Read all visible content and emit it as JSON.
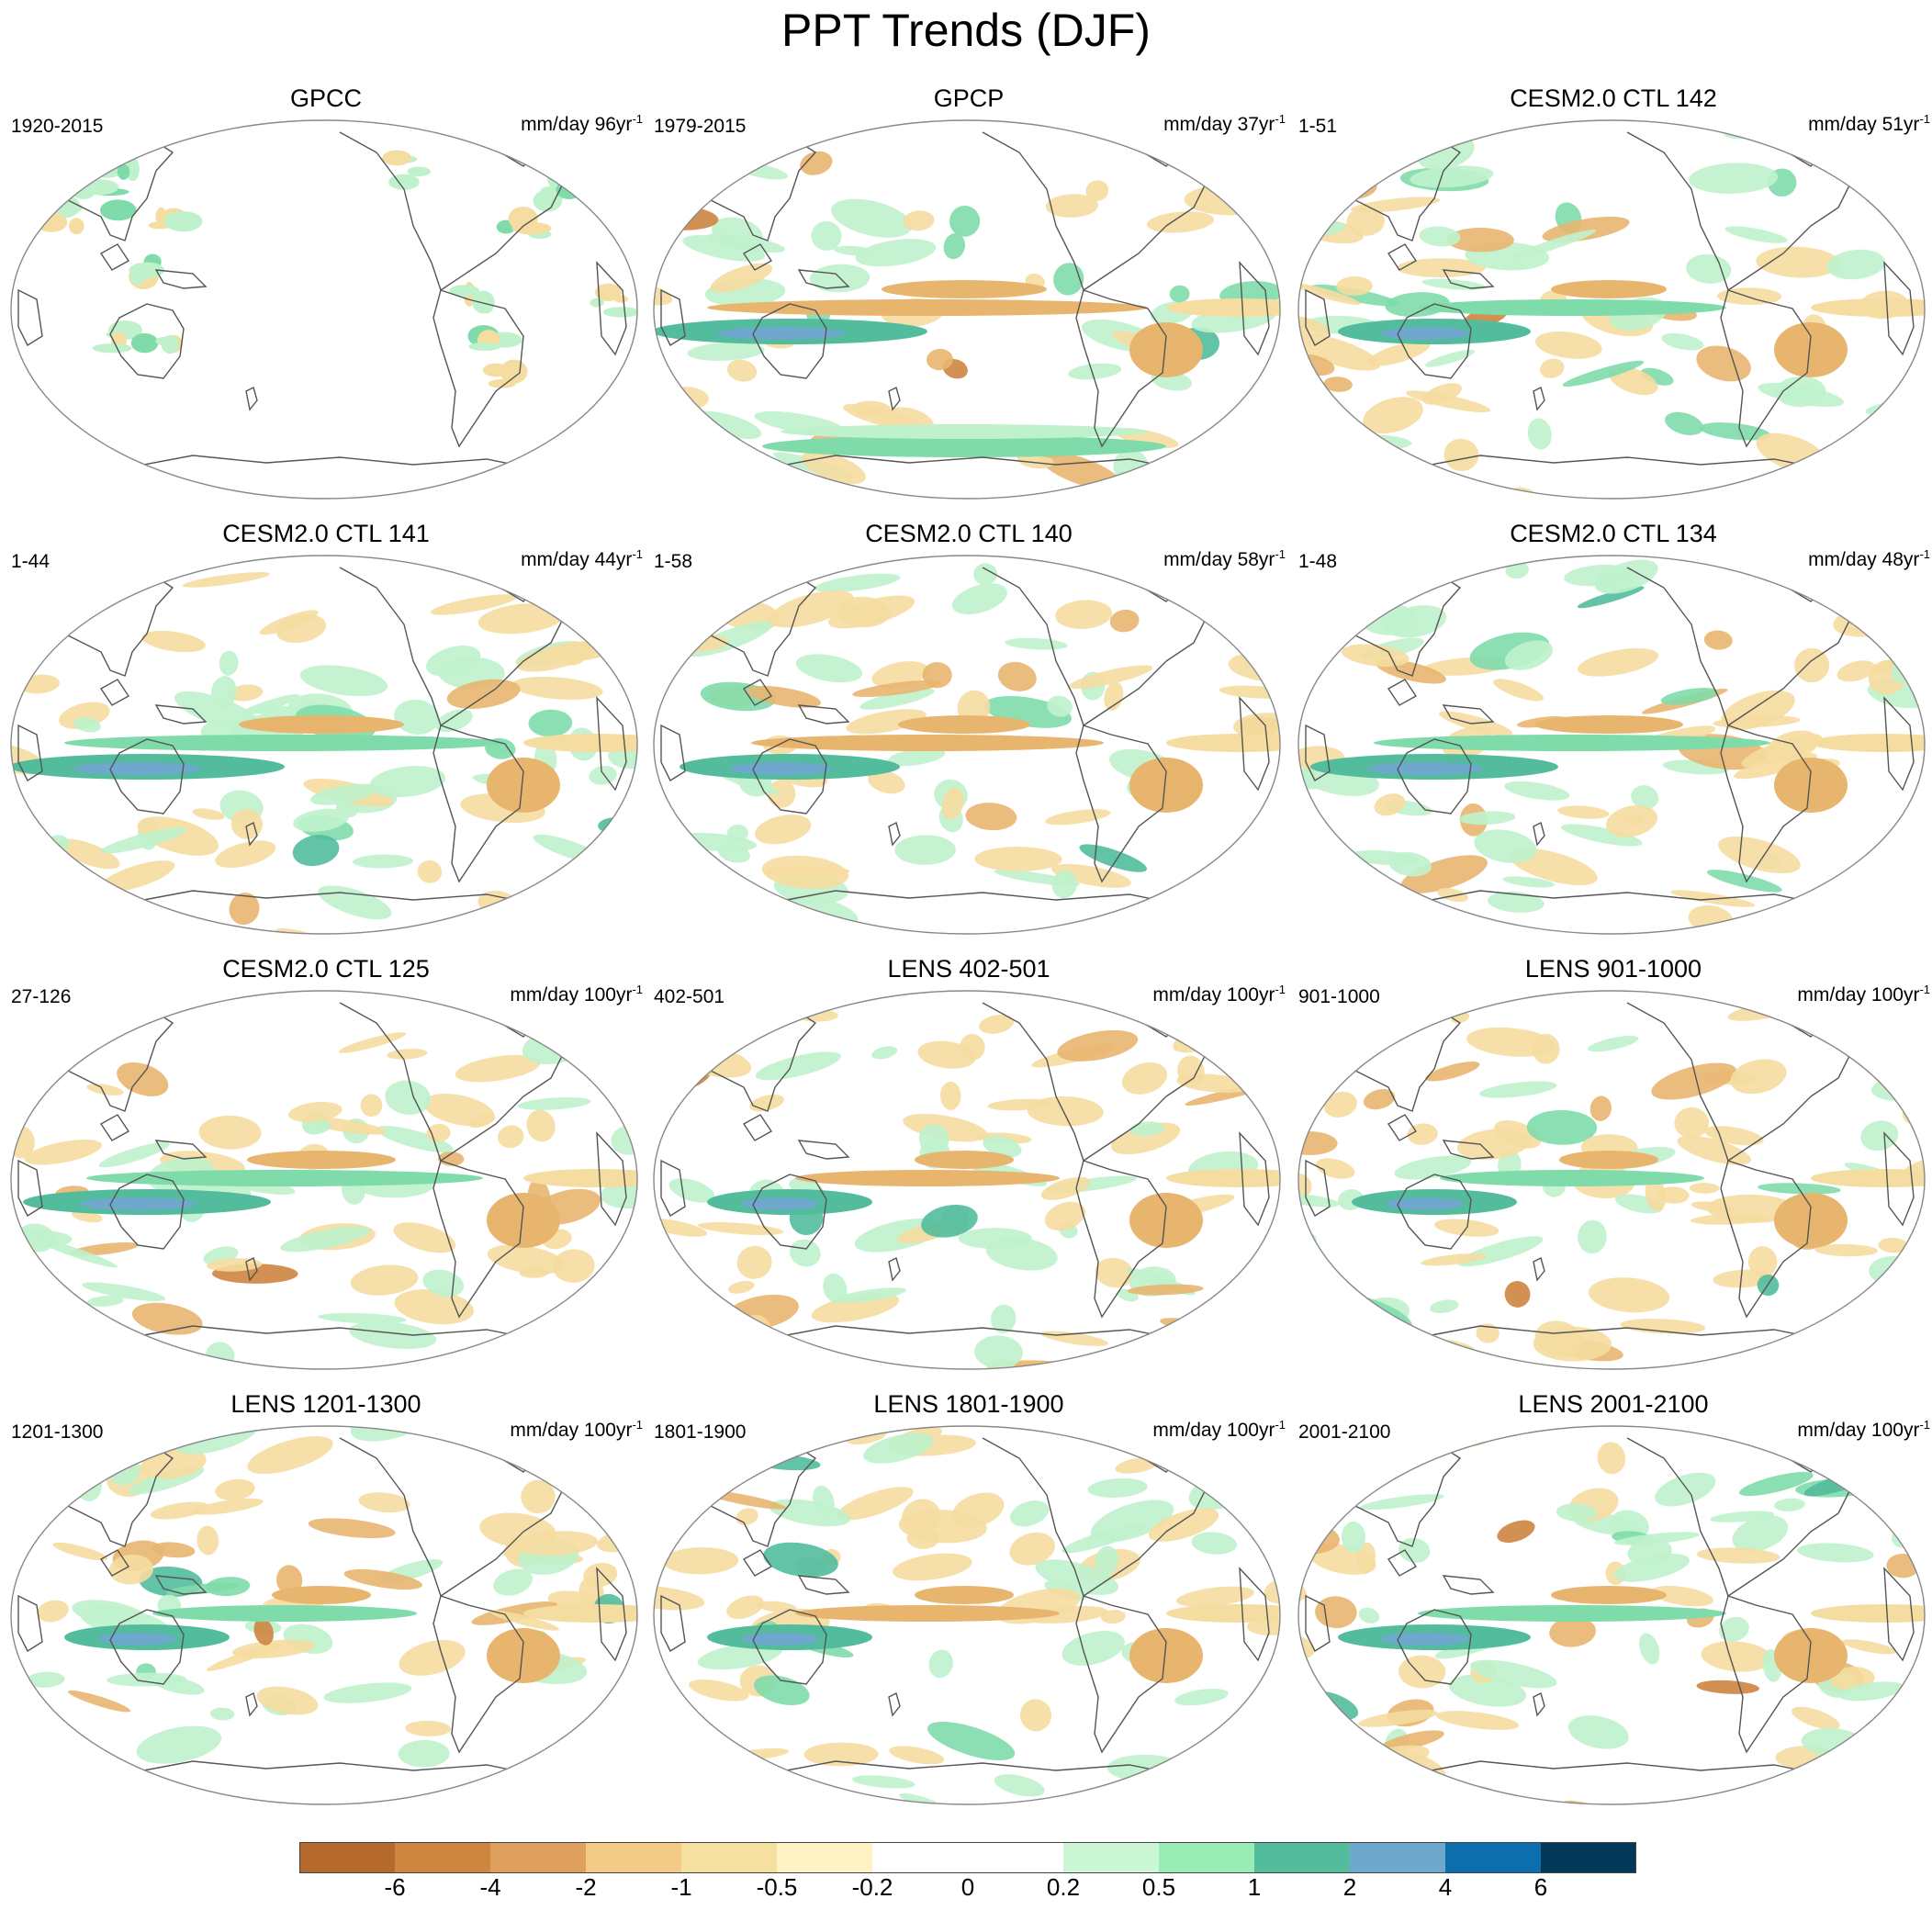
{
  "title": "PPT Trends (DJF)",
  "panels": [
    {
      "title": "GPCC",
      "period": "1920-2015",
      "units_prefix": "mm/day 96yr",
      "units_exp": "-1"
    },
    {
      "title": "GPCP",
      "period": "1979-2015",
      "units_prefix": "mm/day 37yr",
      "units_exp": "-1"
    },
    {
      "title": "CESM2.0 CTL 142",
      "period": "1-51",
      "units_prefix": "mm/day 51yr",
      "units_exp": "-1"
    },
    {
      "title": "CESM2.0 CTL 141",
      "period": "1-44",
      "units_prefix": "mm/day 44yr",
      "units_exp": "-1"
    },
    {
      "title": "CESM2.0 CTL 140",
      "period": "1-58",
      "units_prefix": "mm/day 58yr",
      "units_exp": "-1"
    },
    {
      "title": "CESM2.0 CTL 134",
      "period": "1-48",
      "units_prefix": "mm/day 48yr",
      "units_exp": "-1"
    },
    {
      "title": "CESM2.0 CTL 125",
      "period": "27-126",
      "units_prefix": "mm/day 100yr",
      "units_exp": "-1"
    },
    {
      "title": "LENS 402-501",
      "period": "402-501",
      "units_prefix": "mm/day 100yr",
      "units_exp": "-1"
    },
    {
      "title": "LENS 901-1000",
      "period": "901-1000",
      "units_prefix": "mm/day 100yr",
      "units_exp": "-1"
    },
    {
      "title": "LENS 1201-1300",
      "period": "1201-1300",
      "units_prefix": "mm/day 100yr",
      "units_exp": "-1"
    },
    {
      "title": "LENS 1801-1900",
      "period": "1801-1900",
      "units_prefix": "mm/day 100yr",
      "units_exp": "-1"
    },
    {
      "title": "LENS 2001-2100",
      "period": "2001-2100",
      "units_prefix": "mm/day 100yr",
      "units_exp": "-1"
    }
  ],
  "colorbar": {
    "labels": [
      "-6",
      "-4",
      "-2",
      "-1",
      "-0.5",
      "-0.2",
      "0",
      "0.2",
      "0.5",
      "1",
      "2",
      "4",
      "6"
    ],
    "colors": [
      "#b5692a",
      "#cd853f",
      "#dea05c",
      "#f3cb87",
      "#f5e0a0",
      "#fdf3c4",
      "#ffffff",
      "#ffffff",
      "#ccf7d4",
      "#99ecb6",
      "#52bc9c",
      "#6ea8cc",
      "#0d6ead",
      "#023858"
    ]
  },
  "palette": {
    "dry_strong": "#cd853f",
    "dry_mid": "#e8b56f",
    "dry_light": "#f5dca0",
    "wet_light": "#bff2cc",
    "wet_mid": "#7fdcaa",
    "wet_strong": "#52bc9c",
    "wet_blue": "#6ea8cc",
    "coast": "#555555"
  }
}
